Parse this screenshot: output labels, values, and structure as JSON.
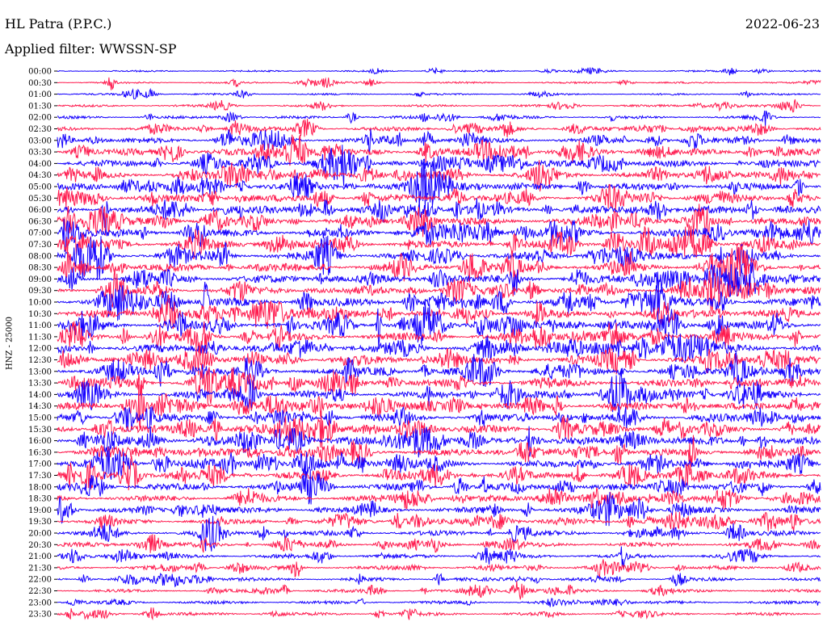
{
  "header": {
    "station": "HL Patra (P.P.C.)",
    "filter": "Applied filter: WWSSN-SP",
    "date": "2022-06-23"
  },
  "chart_data": {
    "type": "line",
    "title": "HL Patra (P.P.C.)",
    "subtitle": "Applied filter: WWSSN-SP",
    "ylabel": "HNZ - 25000",
    "date": "2022-06-23",
    "row_interval_minutes": 30,
    "trace_colors": [
      "#1400ff",
      "#ff1a4e"
    ],
    "rows": [
      {
        "label": "00:00",
        "activity": 0.1
      },
      {
        "label": "00:30",
        "activity": 0.12
      },
      {
        "label": "01:00",
        "activity": 0.12
      },
      {
        "label": "01:30",
        "activity": 0.18
      },
      {
        "label": "02:00",
        "activity": 0.25
      },
      {
        "label": "02:30",
        "activity": 0.45
      },
      {
        "label": "03:00",
        "activity": 0.6
      },
      {
        "label": "03:30",
        "activity": 0.75
      },
      {
        "label": "04:00",
        "activity": 0.8
      },
      {
        "label": "04:30",
        "activity": 0.85
      },
      {
        "label": "05:00",
        "activity": 0.85
      },
      {
        "label": "05:30",
        "activity": 0.85
      },
      {
        "label": "06:00",
        "activity": 0.9
      },
      {
        "label": "06:30",
        "activity": 0.9
      },
      {
        "label": "07:00",
        "activity": 0.95
      },
      {
        "label": "07:30",
        "activity": 0.95
      },
      {
        "label": "08:00",
        "activity": 0.95
      },
      {
        "label": "08:30",
        "activity": 0.95
      },
      {
        "label": "09:00",
        "activity": 0.95
      },
      {
        "label": "09:30",
        "activity": 0.95
      },
      {
        "label": "10:00",
        "activity": 0.95
      },
      {
        "label": "10:30",
        "activity": 0.95
      },
      {
        "label": "11:00",
        "activity": 0.95
      },
      {
        "label": "11:30",
        "activity": 0.95
      },
      {
        "label": "12:00",
        "activity": 0.95
      },
      {
        "label": "12:30",
        "activity": 0.95
      },
      {
        "label": "13:00",
        "activity": 0.95
      },
      {
        "label": "13:30",
        "activity": 0.9
      },
      {
        "label": "14:00",
        "activity": 0.9
      },
      {
        "label": "14:30",
        "activity": 0.9
      },
      {
        "label": "15:00",
        "activity": 0.9
      },
      {
        "label": "15:30",
        "activity": 0.9
      },
      {
        "label": "16:00",
        "activity": 0.9
      },
      {
        "label": "16:30",
        "activity": 0.85
      },
      {
        "label": "17:00",
        "activity": 0.85
      },
      {
        "label": "17:30",
        "activity": 0.85
      },
      {
        "label": "18:00",
        "activity": 0.8
      },
      {
        "label": "18:30",
        "activity": 0.75
      },
      {
        "label": "19:00",
        "activity": 0.7
      },
      {
        "label": "19:30",
        "activity": 0.65
      },
      {
        "label": "20:00",
        "activity": 0.55
      },
      {
        "label": "20:30",
        "activity": 0.5
      },
      {
        "label": "21:00",
        "activity": 0.45
      },
      {
        "label": "21:30",
        "activity": 0.4
      },
      {
        "label": "22:00",
        "activity": 0.35
      },
      {
        "label": "22:30",
        "activity": 0.3
      },
      {
        "label": "23:00",
        "activity": 0.3
      },
      {
        "label": "23:30",
        "activity": 0.3
      }
    ]
  }
}
